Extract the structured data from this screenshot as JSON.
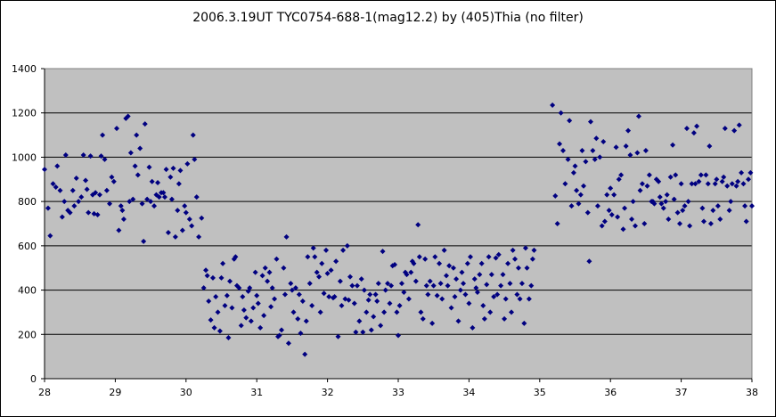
{
  "chart_data": {
    "type": "scatter",
    "title": "2006.3.19UT TYC0754-688-1(mag12.2) by (405)Thia  (no filter)",
    "xlabel": "",
    "ylabel": "",
    "xlim": [
      28,
      38
    ],
    "ylim": [
      0,
      1400
    ],
    "x_ticks": [
      "28",
      "29",
      "30",
      "31",
      "32",
      "33",
      "34",
      "35",
      "36",
      "37",
      "38"
    ],
    "y_ticks": [
      "0",
      "200",
      "400",
      "600",
      "800",
      "1000",
      "1200",
      "1400"
    ],
    "grid": "horizontal",
    "plot_background": "#c0c0c0",
    "marker_color": "#000080",
    "points": [
      [
        28.0,
        945
      ],
      [
        28.05,
        770
      ],
      [
        28.08,
        645
      ],
      [
        28.12,
        880
      ],
      [
        28.16,
        865
      ],
      [
        28.18,
        960
      ],
      [
        28.22,
        850
      ],
      [
        28.25,
        730
      ],
      [
        28.28,
        800
      ],
      [
        28.3,
        1010
      ],
      [
        28.33,
        760
      ],
      [
        28.36,
        750
      ],
      [
        28.4,
        850
      ],
      [
        28.42,
        780
      ],
      [
        28.45,
        905
      ],
      [
        28.48,
        800
      ],
      [
        28.52,
        820
      ],
      [
        28.55,
        1010
      ],
      [
        28.58,
        895
      ],
      [
        28.6,
        855
      ],
      [
        28.62,
        750
      ],
      [
        28.65,
        1005
      ],
      [
        28.68,
        830
      ],
      [
        28.7,
        745
      ],
      [
        28.72,
        840
      ],
      [
        28.75,
        740
      ],
      [
        28.78,
        830
      ],
      [
        28.8,
        1005
      ],
      [
        28.82,
        1100
      ],
      [
        28.85,
        990
      ],
      [
        28.88,
        850
      ],
      [
        28.92,
        790
      ],
      [
        28.95,
        910
      ],
      [
        28.98,
        890
      ],
      [
        29.02,
        1130
      ],
      [
        29.05,
        670
      ],
      [
        29.08,
        780
      ],
      [
        29.1,
        760
      ],
      [
        29.12,
        720
      ],
      [
        29.15,
        1175
      ],
      [
        29.18,
        1185
      ],
      [
        29.2,
        800
      ],
      [
        29.22,
        1020
      ],
      [
        29.25,
        810
      ],
      [
        29.28,
        960
      ],
      [
        29.3,
        1100
      ],
      [
        29.32,
        920
      ],
      [
        29.35,
        1040
      ],
      [
        29.38,
        790
      ],
      [
        29.4,
        620
      ],
      [
        29.42,
        1150
      ],
      [
        29.45,
        810
      ],
      [
        29.48,
        955
      ],
      [
        29.5,
        800
      ],
      [
        29.52,
        890
      ],
      [
        29.55,
        780
      ],
      [
        29.58,
        830
      ],
      [
        29.6,
        885
      ],
      [
        29.62,
        820
      ],
      [
        29.65,
        840
      ],
      [
        29.68,
        840
      ],
      [
        29.7,
        820
      ],
      [
        29.72,
        945
      ],
      [
        29.75,
        660
      ],
      [
        29.78,
        910
      ],
      [
        29.8,
        810
      ],
      [
        29.82,
        950
      ],
      [
        29.85,
        640
      ],
      [
        29.88,
        760
      ],
      [
        29.9,
        880
      ],
      [
        29.92,
        940
      ],
      [
        29.95,
        670
      ],
      [
        29.98,
        780
      ],
      [
        30.0,
        750
      ],
      [
        30.02,
        970
      ],
      [
        30.05,
        720
      ],
      [
        30.08,
        690
      ],
      [
        30.1,
        1100
      ],
      [
        30.12,
        990
      ],
      [
        30.15,
        820
      ],
      [
        30.18,
        640
      ],
      [
        30.22,
        725
      ],
      [
        30.25,
        410
      ],
      [
        30.28,
        490
      ],
      [
        30.3,
        465
      ],
      [
        30.32,
        350
      ],
      [
        30.35,
        265
      ],
      [
        30.38,
        455
      ],
      [
        30.4,
        230
      ],
      [
        30.42,
        370
      ],
      [
        30.45,
        300
      ],
      [
        30.48,
        215
      ],
      [
        30.5,
        455
      ],
      [
        30.52,
        520
      ],
      [
        30.55,
        330
      ],
      [
        30.58,
        375
      ],
      [
        30.6,
        185
      ],
      [
        30.62,
        440
      ],
      [
        30.65,
        320
      ],
      [
        30.68,
        540
      ],
      [
        30.7,
        550
      ],
      [
        30.72,
        420
      ],
      [
        30.75,
        410
      ],
      [
        30.78,
        240
      ],
      [
        30.8,
        370
      ],
      [
        30.82,
        310
      ],
      [
        30.85,
        275
      ],
      [
        30.88,
        395
      ],
      [
        30.9,
        410
      ],
      [
        30.92,
        260
      ],
      [
        30.95,
        320
      ],
      [
        30.98,
        480
      ],
      [
        31.0,
        375
      ],
      [
        31.02,
        340
      ],
      [
        31.05,
        230
      ],
      [
        31.08,
        465
      ],
      [
        31.1,
        285
      ],
      [
        31.12,
        500
      ],
      [
        31.15,
        440
      ],
      [
        31.18,
        480
      ],
      [
        31.2,
        325
      ],
      [
        31.22,
        410
      ],
      [
        31.25,
        360
      ],
      [
        31.28,
        540
      ],
      [
        31.3,
        190
      ],
      [
        31.32,
        195
      ],
      [
        31.35,
        220
      ],
      [
        31.38,
        500
      ],
      [
        31.4,
        380
      ],
      [
        31.42,
        640
      ],
      [
        31.45,
        160
      ],
      [
        31.48,
        430
      ],
      [
        31.5,
        400
      ],
      [
        31.52,
        300
      ],
      [
        31.55,
        410
      ],
      [
        31.58,
        270
      ],
      [
        31.6,
        380
      ],
      [
        31.62,
        205
      ],
      [
        31.65,
        350
      ],
      [
        31.68,
        110
      ],
      [
        31.7,
        260
      ],
      [
        31.72,
        550
      ],
      [
        31.75,
        430
      ],
      [
        31.78,
        330
      ],
      [
        31.8,
        590
      ],
      [
        31.82,
        550
      ],
      [
        31.85,
        480
      ],
      [
        31.88,
        460
      ],
      [
        31.9,
        300
      ],
      [
        31.92,
        520
      ],
      [
        31.95,
        385
      ],
      [
        31.98,
        580
      ],
      [
        32.0,
        475
      ],
      [
        32.02,
        370
      ],
      [
        32.05,
        490
      ],
      [
        32.08,
        365
      ],
      [
        32.1,
        370
      ],
      [
        32.12,
        530
      ],
      [
        32.15,
        190
      ],
      [
        32.18,
        440
      ],
      [
        32.2,
        330
      ],
      [
        32.22,
        580
      ],
      [
        32.25,
        360
      ],
      [
        32.28,
        600
      ],
      [
        32.3,
        355
      ],
      [
        32.32,
        460
      ],
      [
        32.35,
        420
      ],
      [
        32.38,
        340
      ],
      [
        32.4,
        210
      ],
      [
        32.42,
        420
      ],
      [
        32.45,
        260
      ],
      [
        32.48,
        450
      ],
      [
        32.5,
        210
      ],
      [
        32.52,
        400
      ],
      [
        32.55,
        300
      ],
      [
        32.58,
        355
      ],
      [
        32.6,
        380
      ],
      [
        32.62,
        220
      ],
      [
        32.65,
        280
      ],
      [
        32.68,
        380
      ],
      [
        32.7,
        350
      ],
      [
        32.72,
        430
      ],
      [
        32.75,
        240
      ],
      [
        32.78,
        575
      ],
      [
        32.8,
        300
      ],
      [
        32.82,
        400
      ],
      [
        32.85,
        430
      ],
      [
        32.88,
        340
      ],
      [
        32.9,
        420
      ],
      [
        32.92,
        510
      ],
      [
        32.95,
        515
      ],
      [
        32.98,
        300
      ],
      [
        33.0,
        195
      ],
      [
        33.02,
        330
      ],
      [
        33.05,
        430
      ],
      [
        33.08,
        390
      ],
      [
        33.1,
        480
      ],
      [
        33.12,
        470
      ],
      [
        33.15,
        360
      ],
      [
        33.18,
        480
      ],
      [
        33.2,
        530
      ],
      [
        33.22,
        520
      ],
      [
        33.25,
        440
      ],
      [
        33.28,
        695
      ],
      [
        33.3,
        550
      ],
      [
        33.32,
        300
      ],
      [
        33.35,
        270
      ],
      [
        33.38,
        540
      ],
      [
        33.4,
        420
      ],
      [
        33.42,
        380
      ],
      [
        33.45,
        440
      ],
      [
        33.48,
        250
      ],
      [
        33.5,
        420
      ],
      [
        33.52,
        550
      ],
      [
        33.55,
        375
      ],
      [
        33.58,
        520
      ],
      [
        33.6,
        430
      ],
      [
        33.62,
        360
      ],
      [
        33.65,
        580
      ],
      [
        33.68,
        465
      ],
      [
        33.7,
        420
      ],
      [
        33.72,
        510
      ],
      [
        33.75,
        320
      ],
      [
        33.78,
        500
      ],
      [
        33.8,
        370
      ],
      [
        33.82,
        450
      ],
      [
        33.85,
        260
      ],
      [
        33.88,
        400
      ],
      [
        33.9,
        480
      ],
      [
        33.92,
        430
      ],
      [
        33.95,
        380
      ],
      [
        33.98,
        520
      ],
      [
        34.0,
        340
      ],
      [
        34.02,
        550
      ],
      [
        34.05,
        230
      ],
      [
        34.08,
        450
      ],
      [
        34.1,
        410
      ],
      [
        34.12,
        390
      ],
      [
        34.15,
        470
      ],
      [
        34.18,
        520
      ],
      [
        34.2,
        330
      ],
      [
        34.22,
        270
      ],
      [
        34.25,
        425
      ],
      [
        34.28,
        550
      ],
      [
        34.3,
        300
      ],
      [
        34.32,
        470
      ],
      [
        34.35,
        370
      ],
      [
        34.38,
        545
      ],
      [
        34.4,
        380
      ],
      [
        34.42,
        560
      ],
      [
        34.45,
        420
      ],
      [
        34.48,
        470
      ],
      [
        34.5,
        270
      ],
      [
        34.52,
        360
      ],
      [
        34.55,
        520
      ],
      [
        34.58,
        430
      ],
      [
        34.6,
        300
      ],
      [
        34.62,
        580
      ],
      [
        34.65,
        540
      ],
      [
        34.68,
        380
      ],
      [
        34.7,
        500
      ],
      [
        34.72,
        360
      ],
      [
        34.75,
        430
      ],
      [
        34.78,
        250
      ],
      [
        34.8,
        590
      ],
      [
        34.82,
        500
      ],
      [
        34.85,
        360
      ],
      [
        34.88,
        420
      ],
      [
        34.9,
        540
      ],
      [
        34.92,
        580
      ],
      [
        35.18,
        1235
      ],
      [
        35.22,
        825
      ],
      [
        35.25,
        700
      ],
      [
        35.28,
        1060
      ],
      [
        35.3,
        1200
      ],
      [
        35.33,
        1030
      ],
      [
        35.36,
        880
      ],
      [
        35.4,
        990
      ],
      [
        35.42,
        1165
      ],
      [
        35.45,
        780
      ],
      [
        35.48,
        930
      ],
      [
        35.5,
        960
      ],
      [
        35.52,
        850
      ],
      [
        35.55,
        790
      ],
      [
        35.58,
        830
      ],
      [
        35.6,
        1030
      ],
      [
        35.62,
        870
      ],
      [
        35.65,
        980
      ],
      [
        35.68,
        750
      ],
      [
        35.7,
        530
      ],
      [
        35.72,
        1160
      ],
      [
        35.75,
        1030
      ],
      [
        35.78,
        990
      ],
      [
        35.8,
        1085
      ],
      [
        35.82,
        780
      ],
      [
        35.85,
        1000
      ],
      [
        35.88,
        690
      ],
      [
        35.9,
        1070
      ],
      [
        35.92,
        710
      ],
      [
        35.95,
        830
      ],
      [
        35.98,
        760
      ],
      [
        36.0,
        860
      ],
      [
        36.02,
        740
      ],
      [
        36.05,
        830
      ],
      [
        36.08,
        1045
      ],
      [
        36.1,
        730
      ],
      [
        36.12,
        900
      ],
      [
        36.15,
        920
      ],
      [
        36.18,
        675
      ],
      [
        36.2,
        770
      ],
      [
        36.22,
        1050
      ],
      [
        36.25,
        1120
      ],
      [
        36.28,
        1010
      ],
      [
        36.3,
        720
      ],
      [
        36.32,
        800
      ],
      [
        36.35,
        690
      ],
      [
        36.38,
        1020
      ],
      [
        36.4,
        1185
      ],
      [
        36.42,
        850
      ],
      [
        36.45,
        880
      ],
      [
        36.48,
        700
      ],
      [
        36.5,
        1030
      ],
      [
        36.52,
        870
      ],
      [
        36.55,
        920
      ],
      [
        36.58,
        800
      ],
      [
        36.6,
        800
      ],
      [
        36.62,
        790
      ],
      [
        36.65,
        900
      ],
      [
        36.68,
        890
      ],
      [
        36.7,
        820
      ],
      [
        36.72,
        790
      ],
      [
        36.75,
        770
      ],
      [
        36.78,
        800
      ],
      [
        36.8,
        830
      ],
      [
        36.82,
        720
      ],
      [
        36.85,
        910
      ],
      [
        36.88,
        1055
      ],
      [
        36.9,
        810
      ],
      [
        36.92,
        920
      ],
      [
        36.95,
        750
      ],
      [
        36.98,
        700
      ],
      [
        37.0,
        880
      ],
      [
        37.02,
        760
      ],
      [
        37.05,
        780
      ],
      [
        37.08,
        1130
      ],
      [
        37.1,
        800
      ],
      [
        37.12,
        690
      ],
      [
        37.15,
        880
      ],
      [
        37.18,
        1110
      ],
      [
        37.2,
        880
      ],
      [
        37.22,
        1140
      ],
      [
        37.25,
        890
      ],
      [
        37.28,
        920
      ],
      [
        37.3,
        770
      ],
      [
        37.32,
        710
      ],
      [
        37.35,
        920
      ],
      [
        37.38,
        880
      ],
      [
        37.4,
        1050
      ],
      [
        37.42,
        700
      ],
      [
        37.45,
        760
      ],
      [
        37.48,
        880
      ],
      [
        37.5,
        900
      ],
      [
        37.52,
        780
      ],
      [
        37.55,
        720
      ],
      [
        37.58,
        890
      ],
      [
        37.6,
        910
      ],
      [
        37.62,
        1130
      ],
      [
        37.65,
        870
      ],
      [
        37.68,
        760
      ],
      [
        37.7,
        800
      ],
      [
        37.72,
        880
      ],
      [
        37.75,
        1120
      ],
      [
        37.78,
        870
      ],
      [
        37.8,
        890
      ],
      [
        37.82,
        1145
      ],
      [
        37.85,
        930
      ],
      [
        37.88,
        880
      ],
      [
        37.9,
        780
      ],
      [
        37.92,
        710
      ],
      [
        37.95,
        900
      ],
      [
        37.98,
        930
      ],
      [
        38.0,
        780
      ]
    ]
  }
}
